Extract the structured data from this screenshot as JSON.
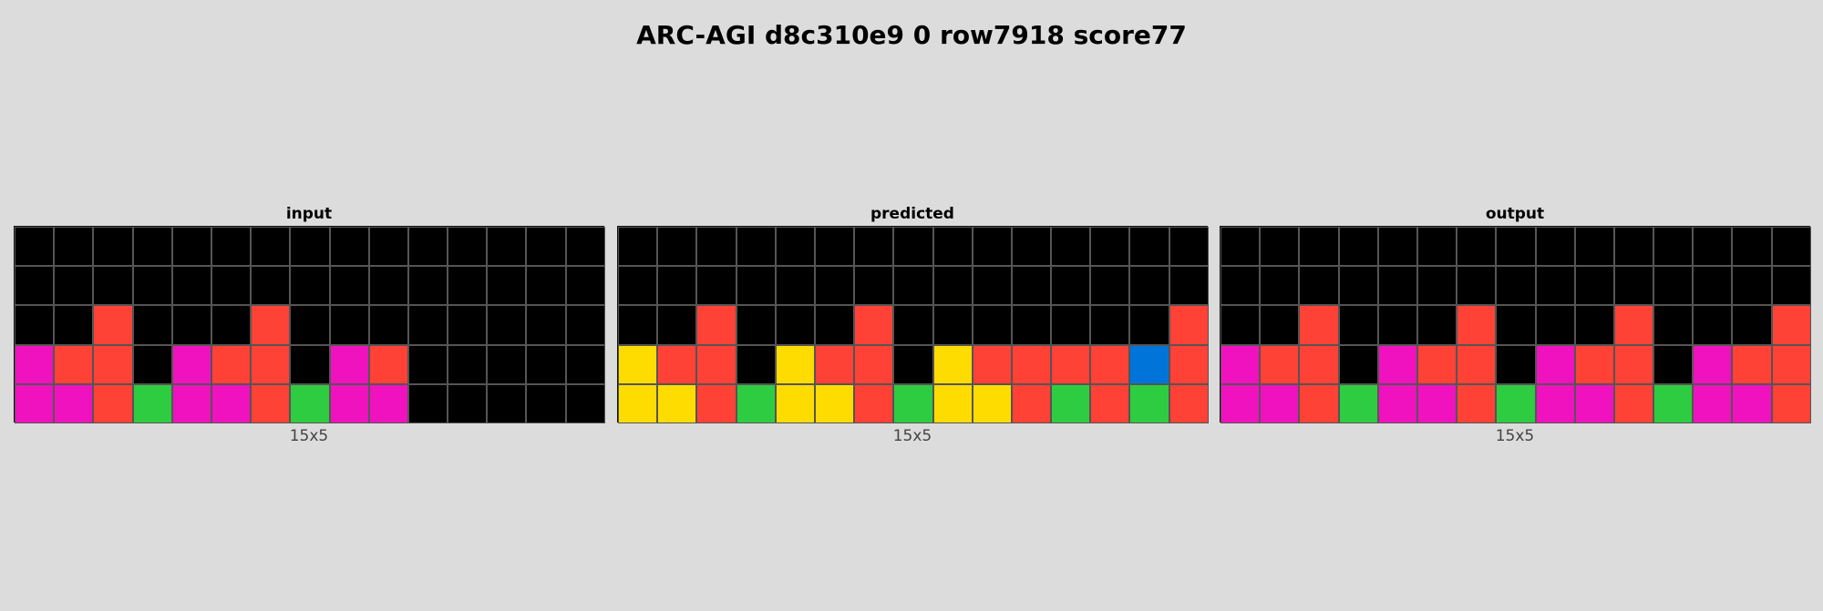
{
  "title": "ARC-AGI d8c310e9 0 row7918 score77",
  "palette": {
    "0": "#000000",
    "1": "#0074d9",
    "2": "#ff4136",
    "3": "#2ecc40",
    "4": "#ffdc00",
    "6": "#f012be"
  },
  "panels": [
    {
      "title": "input",
      "size_label": "15x5",
      "grid": [
        [
          0,
          0,
          0,
          0,
          0,
          0,
          0,
          0,
          0,
          0,
          0,
          0,
          0,
          0,
          0
        ],
        [
          0,
          0,
          0,
          0,
          0,
          0,
          0,
          0,
          0,
          0,
          0,
          0,
          0,
          0,
          0
        ],
        [
          0,
          0,
          2,
          0,
          0,
          0,
          2,
          0,
          0,
          0,
          0,
          0,
          0,
          0,
          0
        ],
        [
          6,
          2,
          2,
          0,
          6,
          2,
          2,
          0,
          6,
          2,
          0,
          0,
          0,
          0,
          0
        ],
        [
          6,
          6,
          2,
          3,
          6,
          6,
          2,
          3,
          6,
          6,
          0,
          0,
          0,
          0,
          0
        ]
      ]
    },
    {
      "title": "predicted",
      "size_label": "15x5",
      "grid": [
        [
          0,
          0,
          0,
          0,
          0,
          0,
          0,
          0,
          0,
          0,
          0,
          0,
          0,
          0,
          0
        ],
        [
          0,
          0,
          0,
          0,
          0,
          0,
          0,
          0,
          0,
          0,
          0,
          0,
          0,
          0,
          0
        ],
        [
          0,
          0,
          2,
          0,
          0,
          0,
          2,
          0,
          0,
          0,
          0,
          0,
          0,
          0,
          2
        ],
        [
          4,
          2,
          2,
          0,
          4,
          2,
          2,
          0,
          4,
          2,
          2,
          2,
          2,
          1,
          2
        ],
        [
          4,
          4,
          2,
          3,
          4,
          4,
          2,
          3,
          4,
          4,
          2,
          3,
          2,
          3,
          2
        ]
      ]
    },
    {
      "title": "output",
      "size_label": "15x5",
      "grid": [
        [
          0,
          0,
          0,
          0,
          0,
          0,
          0,
          0,
          0,
          0,
          0,
          0,
          0,
          0,
          0
        ],
        [
          0,
          0,
          0,
          0,
          0,
          0,
          0,
          0,
          0,
          0,
          0,
          0,
          0,
          0,
          0
        ],
        [
          0,
          0,
          2,
          0,
          0,
          0,
          2,
          0,
          0,
          0,
          2,
          0,
          0,
          0,
          2
        ],
        [
          6,
          2,
          2,
          0,
          6,
          2,
          2,
          0,
          6,
          2,
          2,
          0,
          6,
          2,
          2
        ],
        [
          6,
          6,
          2,
          3,
          6,
          6,
          2,
          3,
          6,
          6,
          2,
          3,
          6,
          6,
          2
        ]
      ]
    }
  ]
}
